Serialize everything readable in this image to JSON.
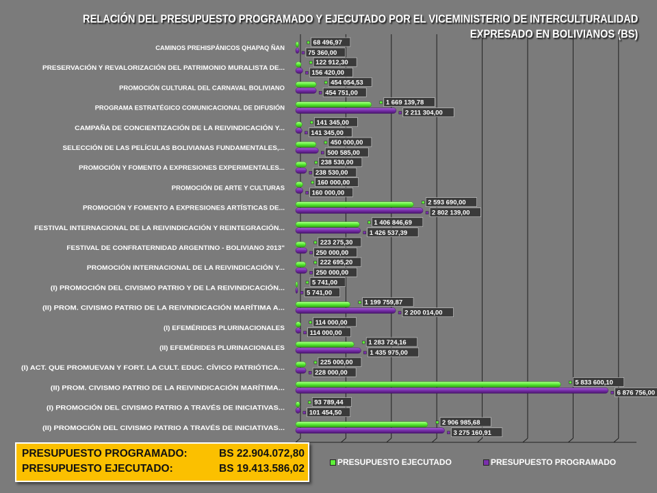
{
  "title": "RELACIÓN DEL PRESUPUESTO PROGRAMADO Y EJECUTADO POR EL VICEMINISTERIO DE INTERCULTURALIDAD",
  "subtitle": "EXPRESADO EN BOLIVIANOS (BS)",
  "colors": {
    "ejecutado": "#5ef03a",
    "programado": "#7a30ad",
    "background": "#7b7b7b",
    "summary_box": "#fbc000",
    "label_box": "#3a3a3a"
  },
  "summary": {
    "programado_label": "PRESUPUESTO PROGRAMADO:",
    "programado_value": "BS 22.904.072,80",
    "ejecutado_label": "PRESUPUESTO EJECUTADO:",
    "ejecutado_value": "BS 19.413.586,02"
  },
  "chart_data": {
    "type": "bar",
    "orientation": "horizontal",
    "grid": true,
    "legend_position": "bottom-right",
    "xlim": [
      0,
      7500000
    ],
    "categories": [
      "CAMINOS PREHISPÁNICOS QHAPAQ ÑAN",
      "PRESERVACIÓN Y REVALORIZACIÓN DEL PATRIMONIO MURALISTA DE...",
      "PROMOCIÓN CULTURAL DEL CARNAVAL BOLIVIANO",
      "PROGRAMA ESTRATÉGICO COMUNICACIONAL DE DIFUSIÓN",
      "CAMPAÑA DE CONCIENTIZACIÓN DE LA REIVINDICACIÓN Y...",
      "SELECCIÓN DE LAS PELÍCULAS BOLIVIANAS FUNDAMENTALES,...",
      "PROMOCIÓN Y FOMENTO A EXPRESIONES EXPERIMENTALES...",
      "PROMOCIÓN DE ARTE Y CULTURAS",
      "PROMOCIÓN Y FOMENTO A EXPRESIONES ARTÍSTICAS DE...",
      "FESTIVAL INTERNACIONAL DE LA REIVINDICACIÓN Y REINTEGRACIÓN...",
      "FESTIVAL DE CONFRATERNIDAD ARGENTINO - BOLIVIANO 2013\"",
      "PROMOCIÓN INTERNACIONAL DE LA REIVINDICACIÓN Y...",
      "(I) PROMOCIÓN DEL CIVISMO PATRIO Y DE LA REIVINDICACIÓN...",
      "(II) PROM. CIVISMO PATRIO DE LA REIVINDICACIÓN MARÍTIMA A...",
      "(I) EFEMÉRIDES PLURINACIONALES",
      "(II) EFEMÉRIDES PLURINACIONALES",
      "(I) ACT. QUE PROMUEVAN Y FORT. LA CULT. EDUC. CÍVICO PATRIÓTICA...",
      "(II) PROM. CIVISMO PATRIO DE LA REIVINDICACIÓN MARÍTIMA...",
      "(I) PROMOCIÓN DEL CIVISMO PATRIO A TRAVÉS DE INICIATIVAS...",
      "(II) PROMOCIÓN DEL CIVISMO PATRIO A TRAVÉS DE INICIATIVAS..."
    ],
    "series": [
      {
        "name": "PRESUPUESTO EJECUTADO",
        "color": "#5ef03a",
        "values": [
          68496.97,
          122912.3,
          454054.53,
          1669139.78,
          141345.0,
          450000.0,
          238530.0,
          160000.0,
          2593690.0,
          1406846.69,
          223275.3,
          222695.2,
          5741.0,
          1199759.87,
          114000.0,
          1283724.16,
          225000.0,
          5833600.1,
          93789.44,
          2906985.68
        ],
        "labels": [
          "68 496,97",
          "122 912,30",
          "454 054,53",
          "1 669 139,78",
          "141 345,00",
          "450 000,00",
          "238 530,00",
          "160 000,00",
          "2 593 690,00",
          "1 406 846,69",
          "223 275,30",
          "222 695,20",
          "5 741,00",
          "1 199 759,87",
          "114 000,00",
          "1 283 724,16",
          "225 000,00",
          "5 833 600,10",
          "93 789,44",
          "2 906 985,68"
        ]
      },
      {
        "name": "PRESUPUESTO PROGRAMADO",
        "color": "#7a30ad",
        "values": [
          75360.0,
          156420.0,
          454751.0,
          2211304.0,
          141345.0,
          500585.0,
          238530.0,
          160000.0,
          2802139.0,
          1426537.39,
          250000.0,
          250000.0,
          5741.0,
          2200014.0,
          114000.0,
          1435975.0,
          228000.0,
          6876756.0,
          101454.5,
          3275160.91
        ],
        "labels": [
          "75 360,00",
          "156 420,00",
          "454 751,00",
          "2 211 304,00",
          "141 345,00",
          "500 585,00",
          "238 530,00",
          "160 000,00",
          "2 802 139,00",
          "1 426 537,39",
          "250 000,00",
          "250 000,00",
          "5 741,00",
          "2 200 014,00",
          "114 000,00",
          "1 435 975,00",
          "228 000,00",
          "6 876 756,00",
          "101 454,50",
          "3 275 160,91"
        ]
      }
    ]
  }
}
